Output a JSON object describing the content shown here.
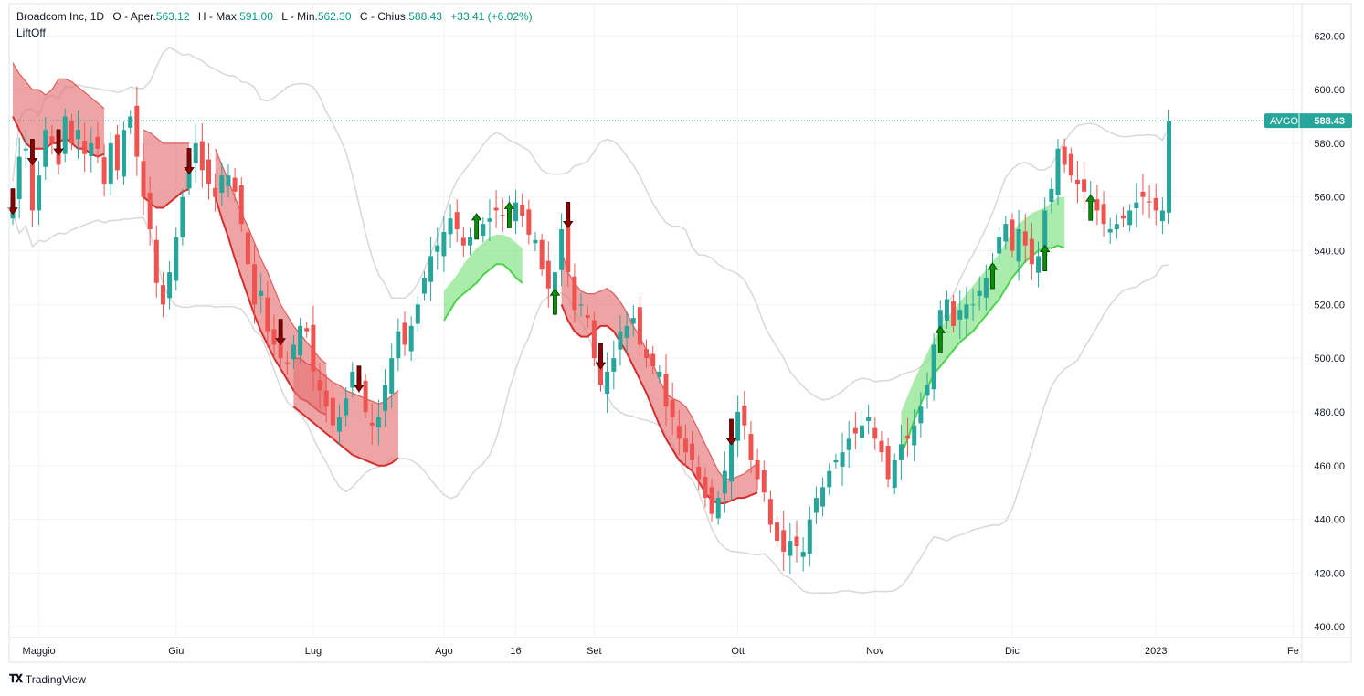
{
  "header": {
    "symbol": "Broadcom Inc",
    "interval": "1D",
    "open_label": "O",
    "open_text": "Aper.",
    "open": "563.12",
    "high_label": "H",
    "high_text": "Max.",
    "high": "591.00",
    "low_label": "L",
    "low_text": "Min.",
    "low": "562.30",
    "close_label": "C",
    "close_text": "Chius.",
    "close": "588.43",
    "change": "+33.41 (+6.02%)"
  },
  "indicator": {
    "name": "LiftOff"
  },
  "price_tag": {
    "ticker": "AVGO",
    "price": "588.43"
  },
  "brand": {
    "name": "TradingView"
  },
  "colors": {
    "up": "#26a69a",
    "down": "#ef5350",
    "band_red": "#e57373",
    "band_green": "#7ee07e",
    "band_red_edge": "#d32f2f",
    "band_green_edge": "#4cd44c",
    "arrow_down": "#8b0000",
    "arrow_up": "#0a8f0a",
    "bollinger": "#d8d8d8",
    "tag": "#26a69a"
  },
  "chart_data": {
    "type": "candlestick",
    "ylim": [
      396,
      632
    ],
    "y_ticks": [
      "400.00",
      "420.00",
      "440.00",
      "460.00",
      "480.00",
      "500.00",
      "520.00",
      "540.00",
      "560.00",
      "580.00",
      "600.00",
      "620.00"
    ],
    "x_ticks": [
      {
        "i": 4,
        "label": "Maggio"
      },
      {
        "i": 25,
        "label": "Giu"
      },
      {
        "i": 46,
        "label": "Lug"
      },
      {
        "i": 66,
        "label": "Ago"
      },
      {
        "i": 77,
        "label": "16"
      },
      {
        "i": 89,
        "label": "Set"
      },
      {
        "i": 111,
        "label": "Ott"
      },
      {
        "i": 132,
        "label": "Nov"
      },
      {
        "i": 153,
        "label": "Dic"
      },
      {
        "i": 175,
        "label": "2023"
      },
      {
        "i": 196,
        "label": "Fe"
      }
    ],
    "last_price": 588.43,
    "closes": [
      560,
      575,
      578,
      555,
      568,
      585,
      580,
      572,
      590,
      580,
      585,
      576,
      580,
      578,
      565,
      580,
      570,
      585,
      590,
      575,
      560,
      548,
      528,
      520,
      532,
      545,
      560,
      575,
      580,
      570,
      565,
      560,
      568,
      568,
      562,
      550,
      535,
      520,
      525,
      510,
      505,
      500,
      498,
      505,
      512,
      510,
      495,
      488,
      482,
      475,
      478,
      485,
      495,
      490,
      480,
      475,
      478,
      490,
      500,
      510,
      505,
      512,
      520,
      530,
      538,
      542,
      547,
      552,
      548,
      542,
      545,
      548,
      550,
      552,
      555,
      553,
      555,
      558,
      553,
      546,
      544,
      533,
      526,
      532,
      548,
      532,
      518,
      520,
      515,
      500,
      490,
      495,
      500,
      510,
      512,
      515,
      505,
      500,
      497,
      495,
      482,
      478,
      470,
      465,
      462,
      455,
      448,
      442,
      448,
      458,
      470,
      480,
      475,
      462,
      455,
      450,
      438,
      432,
      428,
      432,
      430,
      428,
      440,
      448,
      452,
      458,
      462,
      465,
      470,
      472,
      475,
      478,
      470,
      465,
      455,
      462,
      468,
      470,
      475,
      482,
      490,
      505,
      518,
      522,
      512,
      518,
      520,
      520,
      525,
      530,
      535,
      545,
      550,
      540,
      548,
      542,
      535,
      538,
      555,
      563,
      578,
      572,
      568,
      565,
      562,
      560,
      555,
      550,
      548,
      550,
      552,
      555,
      558,
      560,
      558,
      555,
      555,
      588.43
    ],
    "bollinger_upper": [],
    "bollinger_lower": [],
    "bands": [
      {
        "kind": "red",
        "start": 0,
        "upper": [
          610,
          606,
          603,
          600,
          600,
          598,
          600,
          604,
          604,
          603,
          601,
          599,
          597,
          595,
          593
        ],
        "lower": [
          590,
          585,
          580,
          578,
          578,
          578,
          580,
          580,
          582,
          580,
          578,
          578,
          576,
          575,
          576
        ]
      },
      {
        "kind": "red",
        "start": 20,
        "upper": [
          585,
          584,
          582,
          580,
          580,
          580,
          580,
          580
        ],
        "lower": [
          560,
          558,
          556,
          556,
          558,
          560,
          562,
          563
        ]
      },
      {
        "kind": "red",
        "start": 31,
        "upper": [
          578,
          572,
          566,
          560,
          554,
          549,
          543,
          537,
          532,
          526,
          520,
          516,
          512,
          509,
          506,
          503,
          500,
          498
        ],
        "lower": [
          560,
          552,
          545,
          537,
          530,
          523,
          516,
          510,
          505,
          500,
          496,
          492,
          488,
          485,
          484,
          482,
          480,
          479
        ]
      },
      {
        "kind": "red",
        "start": 43,
        "upper": [
          500,
          500,
          498,
          497,
          495,
          493,
          491,
          490,
          488,
          487,
          486,
          485,
          484,
          483,
          484,
          486,
          488
        ],
        "lower": [
          482,
          480,
          478,
          476,
          474,
          472,
          470,
          468,
          466,
          464,
          463,
          462,
          461,
          460,
          460,
          461,
          463
        ]
      },
      {
        "kind": "red",
        "start": 84,
        "upper": [
          540,
          532,
          528,
          525,
          524,
          524,
          525,
          526,
          524,
          521,
          517,
          512,
          508,
          503,
          498,
          492,
          487,
          485,
          484,
          482,
          478,
          473,
          468,
          463,
          458,
          455,
          455,
          456,
          457,
          459,
          461
        ],
        "lower": [
          520,
          514,
          510,
          508,
          508,
          510,
          512,
          512,
          510,
          506,
          502,
          497,
          492,
          487,
          481,
          475,
          470,
          466,
          462,
          460,
          458,
          454,
          450,
          447,
          446,
          446,
          447,
          448,
          448,
          449,
          450
        ]
      },
      {
        "kind": "green",
        "start": 66,
        "upper": [
          525,
          528,
          531,
          535,
          538,
          541,
          543,
          545,
          546,
          546,
          545,
          543,
          541
        ],
        "lower": [
          514,
          518,
          522,
          524,
          526,
          528,
          531,
          533,
          535,
          535,
          533,
          530,
          528
        ]
      },
      {
        "kind": "green",
        "start": 136,
        "upper": [
          480,
          486,
          492,
          497,
          502,
          507,
          511,
          515,
          518,
          521,
          524,
          527,
          530,
          533,
          536,
          539,
          543,
          547,
          550,
          552,
          554,
          555,
          556,
          558,
          560,
          560
        ],
        "lower": [
          464,
          470,
          477,
          483,
          489,
          494,
          497,
          500,
          503,
          506,
          508,
          510,
          513,
          516,
          519,
          522,
          526,
          530,
          533,
          536,
          538,
          540,
          541,
          541,
          542,
          541
        ]
      }
    ],
    "arrows_down": [
      0,
      3,
      7,
      27,
      41,
      53,
      85,
      90,
      110
    ],
    "arrows_up": [
      71,
      76,
      83,
      142,
      150,
      158,
      165
    ]
  }
}
